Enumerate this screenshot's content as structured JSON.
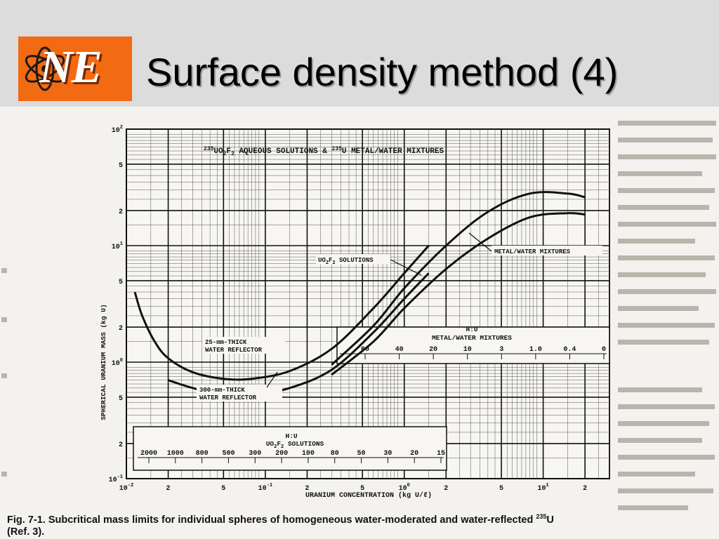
{
  "slide": {
    "title": "Surface density method (4)",
    "logo_text": "NE"
  },
  "chart_data": {
    "type": "line",
    "title": "235UO2F2 AQUEOUS SOLUTIONS & 235U METAL/WATER MIXTURES",
    "title_parts": [
      "235",
      "UO",
      "2",
      "F",
      "2",
      " AQUEOUS SOLUTIONS & ",
      "235",
      "U METAL/WATER MIXTURES"
    ],
    "xlabel": "URANIUM CONCENTRATION (kg U/ℓ)",
    "ylabel": "SPHERICAL URANIUM MASS (kg U)",
    "x_scale": "log",
    "y_scale": "log",
    "xlim": [
      0.01,
      30
    ],
    "ylim": [
      0.1,
      100
    ],
    "grid": true,
    "x_ticks": [
      {
        "v": 0.01,
        "base": "10",
        "exp": "-2"
      },
      {
        "v": 0.02,
        "text": "2"
      },
      {
        "v": 0.05,
        "text": "5"
      },
      {
        "v": 0.1,
        "base": "10",
        "exp": "-1"
      },
      {
        "v": 0.2,
        "text": "2"
      },
      {
        "v": 0.5,
        "text": "5"
      },
      {
        "v": 1,
        "base": "10",
        "exp": "0"
      },
      {
        "v": 2,
        "text": "2"
      },
      {
        "v": 5,
        "text": "5"
      },
      {
        "v": 10,
        "base": "10",
        "exp": "1"
      },
      {
        "v": 20,
        "text": "2"
      }
    ],
    "y_ticks": [
      {
        "v": 100,
        "base": "10",
        "exp": "2"
      },
      {
        "v": 50,
        "text": "5"
      },
      {
        "v": 20,
        "text": "2"
      },
      {
        "v": 10,
        "base": "10",
        "exp": "1"
      },
      {
        "v": 5,
        "text": "5"
      },
      {
        "v": 2,
        "text": "2"
      },
      {
        "v": 1,
        "base": "10",
        "exp": "0"
      },
      {
        "v": 0.5,
        "text": "5"
      },
      {
        "v": 0.2,
        "text": "2"
      },
      {
        "v": 0.1,
        "base": "10",
        "exp": "-1"
      }
    ],
    "series": [
      {
        "x": [
          0.0115,
          0.013,
          0.016,
          0.02,
          0.03,
          0.05,
          0.08,
          0.15,
          0.3,
          0.6,
          1.0,
          1.5
        ],
        "y": [
          4.0,
          2.5,
          1.5,
          1.08,
          0.82,
          0.72,
          0.72,
          0.84,
          1.3,
          2.9,
          5.8,
          10.0
        ]
      },
      {
        "x": [
          0.02,
          0.03,
          0.05,
          0.08,
          0.15,
          0.3,
          0.6,
          1.0,
          1.5
        ],
        "y": [
          0.7,
          0.6,
          0.52,
          0.52,
          0.6,
          0.86,
          1.8,
          3.5,
          5.8
        ]
      },
      {
        "x": [
          0.3,
          0.6,
          1.0,
          2.0,
          4.0,
          8.0,
          15.0,
          20.0
        ],
        "y": [
          0.95,
          2.05,
          4.3,
          10.0,
          19.5,
          28.0,
          28.0,
          26.0
        ]
      },
      {
        "x": [
          0.3,
          0.6,
          1.0,
          2.0,
          4.0,
          8.0,
          15.0,
          20.0
        ],
        "y": [
          0.78,
          1.5,
          2.9,
          6.3,
          11.5,
          17.5,
          19.0,
          18.5
        ]
      }
    ],
    "annotations": {
      "reflector_25_line1": "25-mm-THICK",
      "reflector_25_line2": "WATER REFLECTOR",
      "reflector_300_line1": "300-mm-THICK",
      "reflector_300_line2": "WATER REFLECTOR",
      "uo2f2_solutions_parts": [
        "UO",
        "2",
        "F",
        "2",
        " SOLUTIONS"
      ],
      "metal_water_mixtures": "METAL/WATER MIXTURES"
    },
    "hu_scale_metal": {
      "label": "H:U",
      "title": "METAL/WATER MIXTURES",
      "ticks": [
        "60",
        "40",
        "20",
        "10",
        "3",
        "1.0",
        "0.4",
        "0"
      ]
    },
    "hu_scale_solution": {
      "label": "H:U",
      "title_parts": [
        "UO",
        "2",
        "F",
        "2",
        " SOLUTIONS"
      ],
      "ticks": [
        "2000",
        "1000",
        "800",
        "500",
        "300",
        "200",
        "100",
        "80",
        "50",
        "30",
        "20",
        "15"
      ]
    },
    "caption_line1": "Fig. 7-1.  Subcritical mass limits for individual spheres of homogeneous water-moderated and water-reflected",
    "caption_sup": "235",
    "caption_u": "U",
    "caption_line2": "(Ref. 3)."
  },
  "colors": {
    "header_bg": "#dcdcdc",
    "logo_bg": "#f26a12",
    "ink": "#111111",
    "page": "#f3f2ef"
  }
}
